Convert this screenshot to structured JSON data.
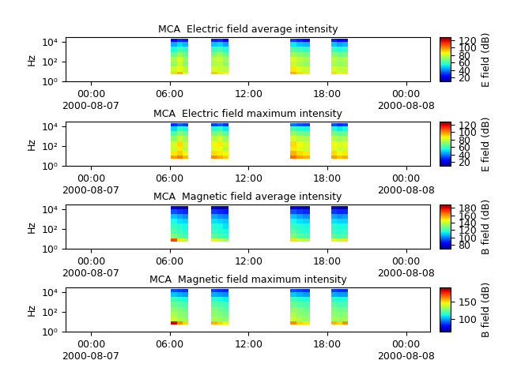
{
  "chart_data": [
    {
      "type": "heatmap",
      "title": "MCA  Electric field average intensity",
      "y_label": "Hz",
      "colorbar_label": "E field (dB)",
      "x": [
        "2000-08-07 06:05",
        "2000-08-07 06:32",
        "2000-08-07 06:58",
        "2000-08-07 07:25",
        "2000-08-07 09:10",
        "2000-08-07 09:37",
        "2000-08-07 10:03",
        "2000-08-07 10:30",
        "2000-08-07 15:10",
        "2000-08-07 15:40",
        "2000-08-07 16:10",
        "2000-08-07 16:40",
        "2000-08-07 18:20",
        "2000-08-07 18:45",
        "2000-08-07 19:10",
        "2000-08-07 19:35"
      ],
      "y": [
        5,
        10,
        32,
        100,
        320,
        1000,
        3200,
        10000,
        20000
      ],
      "cells": [
        [
          90,
          95,
          85,
          null,
          92,
          88,
          85,
          null,
          95,
          90,
          88,
          null,
          90,
          85,
          88
        ],
        [
          80,
          85,
          78,
          null,
          82,
          80,
          78,
          null,
          88,
          82,
          80,
          null,
          82,
          78,
          80
        ],
        [
          72,
          80,
          70,
          null,
          75,
          78,
          70,
          null,
          80,
          75,
          72,
          null,
          75,
          72,
          74
        ],
        [
          75,
          82,
          72,
          null,
          78,
          80,
          74,
          null,
          82,
          78,
          75,
          null,
          78,
          74,
          76
        ],
        [
          65,
          72,
          66,
          null,
          70,
          74,
          66,
          null,
          74,
          70,
          68,
          null,
          70,
          66,
          68
        ],
        [
          55,
          62,
          58,
          null,
          60,
          62,
          56,
          null,
          64,
          60,
          58,
          null,
          60,
          56,
          58
        ],
        [
          45,
          50,
          46,
          null,
          48,
          50,
          44,
          null,
          52,
          48,
          46,
          null,
          48,
          44,
          46
        ],
        [
          25,
          30,
          28,
          null,
          28,
          30,
          25,
          null,
          32,
          28,
          26,
          null,
          28,
          25,
          26
        ]
      ],
      "xlim": [
        "2000-08-06 22:05",
        "2000-08-08 01:50"
      ],
      "xticks": [
        {
          "value": "2000-08-07 00:00",
          "label": "00:00\n2000-08-07"
        },
        {
          "value": "2000-08-07 06:00",
          "label": "06:00"
        },
        {
          "value": "2000-08-07 12:00",
          "label": "12:00"
        },
        {
          "value": "2000-08-07 18:00",
          "label": "18:00"
        },
        {
          "value": "2000-08-08 00:00",
          "label": "00:00\n2000-08-08"
        }
      ],
      "ylim": [
        1,
        30000
      ],
      "yticks": [
        {
          "value": 1,
          "label": "10⁰"
        },
        {
          "value": 100,
          "label": "10²"
        },
        {
          "value": 10000,
          "label": "10⁴"
        }
      ],
      "log": "y",
      "color_range": [
        10,
        128
      ],
      "color_ticks": [
        20,
        40,
        60,
        80,
        100,
        120
      ]
    },
    {
      "type": "heatmap",
      "title": "MCA  Electric field maximum intensity",
      "y_label": "Hz",
      "colorbar_label": "E field (dB)",
      "x": [
        "2000-08-07 06:05",
        "2000-08-07 06:32",
        "2000-08-07 06:58",
        "2000-08-07 07:25",
        "2000-08-07 09:10",
        "2000-08-07 09:37",
        "2000-08-07 10:03",
        "2000-08-07 10:30",
        "2000-08-07 15:10",
        "2000-08-07 15:40",
        "2000-08-07 16:10",
        "2000-08-07 16:40",
        "2000-08-07 18:20",
        "2000-08-07 18:45",
        "2000-08-07 19:10",
        "2000-08-07 19:35"
      ],
      "y": [
        5,
        10,
        32,
        100,
        320,
        1000,
        3200,
        10000,
        20000
      ],
      "cells": [
        [
          98,
          102,
          94,
          null,
          100,
          96,
          92,
          null,
          104,
          98,
          95,
          null,
          98,
          93,
          96
        ],
        [
          88,
          92,
          86,
          null,
          90,
          88,
          86,
          null,
          95,
          90,
          88,
          null,
          90,
          86,
          88
        ],
        [
          80,
          88,
          78,
          null,
          84,
          86,
          78,
          null,
          88,
          84,
          80,
          null,
          84,
          80,
          82
        ],
        [
          82,
          90,
          80,
          null,
          86,
          88,
          82,
          null,
          90,
          86,
          82,
          null,
          86,
          82,
          84
        ],
        [
          72,
          80,
          74,
          null,
          78,
          82,
          74,
          null,
          82,
          78,
          76,
          null,
          78,
          74,
          76
        ],
        [
          62,
          70,
          66,
          null,
          68,
          70,
          64,
          null,
          72,
          68,
          66,
          null,
          68,
          64,
          66
        ],
        [
          50,
          58,
          54,
          null,
          56,
          58,
          52,
          null,
          60,
          56,
          54,
          null,
          56,
          52,
          54
        ],
        [
          30,
          36,
          32,
          null,
          32,
          36,
          30,
          null,
          38,
          34,
          32,
          null,
          34,
          30,
          32
        ]
      ],
      "xlim": [
        "2000-08-06 22:05",
        "2000-08-08 01:50"
      ],
      "xticks": [
        {
          "value": "2000-08-07 00:00",
          "label": "00:00\n2000-08-07"
        },
        {
          "value": "2000-08-07 06:00",
          "label": "06:00"
        },
        {
          "value": "2000-08-07 12:00",
          "label": "12:00"
        },
        {
          "value": "2000-08-07 18:00",
          "label": "18:00"
        },
        {
          "value": "2000-08-08 00:00",
          "label": "00:00\n2000-08-08"
        }
      ],
      "ylim": [
        1,
        30000
      ],
      "yticks": [
        {
          "value": 1,
          "label": "10⁰"
        },
        {
          "value": 100,
          "label": "10²"
        },
        {
          "value": 10000,
          "label": "10⁴"
        }
      ],
      "log": "y",
      "color_range": [
        10,
        128
      ],
      "color_ticks": [
        20,
        40,
        60,
        80,
        100,
        120
      ]
    },
    {
      "type": "heatmap",
      "title": "MCA  Magnetic field average intensity",
      "y_label": "Hz",
      "colorbar_label": "B field (dB)",
      "x": [
        "2000-08-07 06:05",
        "2000-08-07 06:32",
        "2000-08-07 06:58",
        "2000-08-07 07:25",
        "2000-08-07 09:10",
        "2000-08-07 09:37",
        "2000-08-07 10:03",
        "2000-08-07 10:30",
        "2000-08-07 15:10",
        "2000-08-07 15:40",
        "2000-08-07 16:10",
        "2000-08-07 16:40",
        "2000-08-07 18:20",
        "2000-08-07 18:45",
        "2000-08-07 19:10",
        "2000-08-07 19:35"
      ],
      "y": [
        5,
        10,
        32,
        100,
        320,
        1000,
        3200,
        10000,
        20000
      ],
      "cells": [
        [
          170,
          150,
          140,
          null,
          145,
          140,
          135,
          null,
          150,
          140,
          138,
          null,
          145,
          140,
          150
        ],
        [
          130,
          125,
          122,
          null,
          125,
          122,
          120,
          null,
          130,
          125,
          122,
          null,
          125,
          122,
          124
        ],
        [
          125,
          120,
          118,
          null,
          120,
          118,
          116,
          null,
          125,
          120,
          118,
          null,
          120,
          118,
          120
        ],
        [
          120,
          118,
          115,
          null,
          118,
          115,
          112,
          null,
          120,
          118,
          115,
          null,
          118,
          115,
          116
        ],
        [
          115,
          112,
          110,
          null,
          112,
          110,
          108,
          null,
          115,
          112,
          110,
          null,
          112,
          110,
          110
        ],
        [
          108,
          105,
          102,
          null,
          105,
          102,
          100,
          null,
          108,
          105,
          102,
          null,
          105,
          102,
          104
        ],
        [
          95,
          92,
          90,
          null,
          92,
          90,
          88,
          null,
          95,
          92,
          90,
          null,
          92,
          90,
          90
        ],
        [
          80,
          78,
          76,
          null,
          78,
          76,
          75,
          null,
          80,
          78,
          76,
          null,
          78,
          76,
          76
        ]
      ],
      "xlim": [
        "2000-08-06 22:05",
        "2000-08-08 01:50"
      ],
      "xticks": [
        {
          "value": "2000-08-07 00:00",
          "label": "00:00\n2000-08-07"
        },
        {
          "value": "2000-08-07 06:00",
          "label": "06:00"
        },
        {
          "value": "2000-08-07 12:00",
          "label": "12:00"
        },
        {
          "value": "2000-08-07 18:00",
          "label": "18:00"
        },
        {
          "value": "2000-08-08 00:00",
          "label": "00:00\n2000-08-08"
        }
      ],
      "ylim": [
        1,
        30000
      ],
      "yticks": [
        {
          "value": 1,
          "label": "10⁰"
        },
        {
          "value": 100,
          "label": "10²"
        },
        {
          "value": 10000,
          "label": "10⁴"
        }
      ],
      "log": "y",
      "color_range": [
        70,
        190
      ],
      "color_ticks": [
        80,
        100,
        120,
        140,
        160,
        180
      ]
    },
    {
      "type": "heatmap",
      "title": "MCA  Magnetic field maximum intensity",
      "y_label": "Hz",
      "colorbar_label": "B field (dB)",
      "x": [
        "2000-08-07 06:05",
        "2000-08-07 06:32",
        "2000-08-07 06:58",
        "2000-08-07 07:25",
        "2000-08-07 09:10",
        "2000-08-07 09:37",
        "2000-08-07 10:03",
        "2000-08-07 10:30",
        "2000-08-07 15:10",
        "2000-08-07 15:40",
        "2000-08-07 16:10",
        "2000-08-07 16:40",
        "2000-08-07 18:20",
        "2000-08-07 18:45",
        "2000-08-07 19:10",
        "2000-08-07 19:35"
      ],
      "y": [
        5,
        10,
        32,
        100,
        320,
        1000,
        3200,
        10000,
        20000
      ],
      "cells": [
        [
          180,
          160,
          150,
          null,
          155,
          150,
          145,
          null,
          160,
          150,
          148,
          null,
          155,
          150,
          160
        ],
        [
          140,
          135,
          132,
          null,
          135,
          132,
          130,
          null,
          140,
          135,
          132,
          null,
          135,
          132,
          134
        ],
        [
          135,
          130,
          128,
          null,
          130,
          128,
          126,
          null,
          135,
          130,
          128,
          null,
          130,
          128,
          130
        ],
        [
          130,
          128,
          125,
          null,
          128,
          125,
          122,
          null,
          130,
          128,
          125,
          null,
          128,
          125,
          126
        ],
        [
          125,
          122,
          120,
          null,
          122,
          120,
          118,
          null,
          125,
          122,
          120,
          null,
          122,
          120,
          120
        ],
        [
          118,
          115,
          112,
          null,
          115,
          112,
          110,
          null,
          118,
          115,
          112,
          null,
          115,
          112,
          114
        ],
        [
          105,
          102,
          100,
          null,
          102,
          100,
          98,
          null,
          105,
          102,
          100,
          null,
          102,
          100,
          100
        ],
        [
          90,
          88,
          86,
          null,
          88,
          86,
          85,
          null,
          90,
          88,
          86,
          null,
          88,
          86,
          86
        ]
      ],
      "xlim": [
        "2000-08-06 22:05",
        "2000-08-08 01:50"
      ],
      "xticks": [
        {
          "value": "2000-08-07 00:00",
          "label": "00:00\n2000-08-07"
        },
        {
          "value": "2000-08-07 06:00",
          "label": "06:00"
        },
        {
          "value": "2000-08-07 12:00",
          "label": "12:00"
        },
        {
          "value": "2000-08-07 18:00",
          "label": "18:00"
        },
        {
          "value": "2000-08-08 00:00",
          "label": "00:00\n2000-08-08"
        }
      ],
      "ylim": [
        1,
        30000
      ],
      "yticks": [
        {
          "value": 1,
          "label": "10⁰"
        },
        {
          "value": 100,
          "label": "10²"
        },
        {
          "value": 10000,
          "label": "10⁴"
        }
      ],
      "log": "y",
      "color_range": [
        65,
        190
      ],
      "color_ticks": [
        100,
        150
      ]
    }
  ]
}
